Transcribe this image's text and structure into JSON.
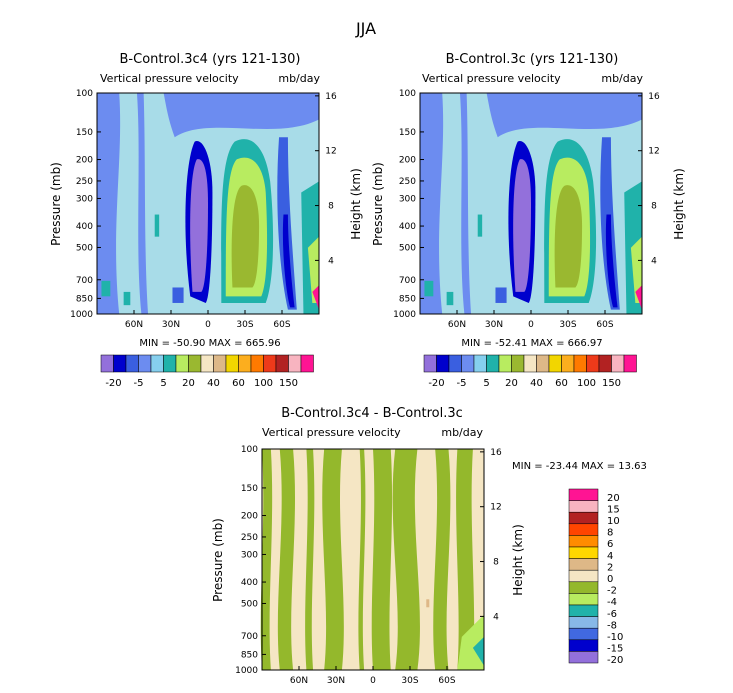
{
  "main_title": "JJA",
  "panels": [
    {
      "title": "B-Control.3c4 (yrs 121-130)",
      "subtitle_left": "Vertical pressure velocity",
      "subtitle_right": "mb/day",
      "ylabel": "Pressure (mb)",
      "ylabel_right": "Height (km)",
      "minmax": "MIN = -50.90   MAX = 665.96"
    },
    {
      "title": "B-Control.3c (yrs 121-130)",
      "subtitle_left": "Vertical pressure velocity",
      "subtitle_right": "mb/day",
      "ylabel": "Pressure (mb)",
      "ylabel_right": "Height (km)",
      "minmax": "MIN = -52.41   MAX = 666.97"
    },
    {
      "title": "B-Control.3c4 - B-Control.3c",
      "subtitle_left": "Vertical pressure velocity",
      "subtitle_right": "mb/day",
      "ylabel": "Pressure (mb)",
      "ylabel_right": "Height (km)",
      "minmax": "MIN = -23.44   MAX =  13.63"
    }
  ],
  "chart_data": [
    {
      "type": "heatmap",
      "title": "B-Control.3c4 (yrs 121-130)",
      "xlabel": "",
      "ylabel": "Pressure (mb)",
      "x_ticks": [
        "60N",
        "30N",
        "0",
        "30S",
        "60S"
      ],
      "y_ticks": [
        "100",
        "150",
        "200",
        "250",
        "300",
        "400",
        "500",
        "700",
        "850",
        "1000"
      ],
      "y_ticks_right": [
        "16",
        "12",
        "8",
        "4"
      ],
      "levels": [
        "-20",
        "-15",
        "-10",
        "-8",
        "-5",
        "-2",
        "0",
        "5",
        "10",
        "20",
        "30",
        "40",
        "50",
        "60",
        "80",
        "100",
        "120",
        "150"
      ],
      "colorbar_labels": [
        "-20",
        "-5",
        "5",
        "20",
        "40",
        "60",
        "100",
        "150"
      ],
      "min": -50.9,
      "max": 665.96
    },
    {
      "type": "heatmap",
      "title": "B-Control.3c (yrs 121-130)",
      "xlabel": "",
      "ylabel": "Pressure (mb)",
      "x_ticks": [
        "60N",
        "30N",
        "0",
        "30S",
        "60S"
      ],
      "y_ticks": [
        "100",
        "150",
        "200",
        "250",
        "300",
        "400",
        "500",
        "700",
        "850",
        "1000"
      ],
      "y_ticks_right": [
        "16",
        "12",
        "8",
        "4"
      ],
      "levels": [
        "-20",
        "-15",
        "-10",
        "-8",
        "-5",
        "-2",
        "0",
        "5",
        "10",
        "20",
        "30",
        "40",
        "50",
        "60",
        "80",
        "100",
        "120",
        "150"
      ],
      "colorbar_labels": [
        "-20",
        "-5",
        "5",
        "20",
        "40",
        "60",
        "100",
        "150"
      ],
      "min": -52.41,
      "max": 666.97
    },
    {
      "type": "heatmap",
      "title": "B-Control.3c4 - B-Control.3c",
      "xlabel": "",
      "ylabel": "Pressure (mb)",
      "x_ticks": [
        "60N",
        "30N",
        "0",
        "30S",
        "60S"
      ],
      "y_ticks": [
        "100",
        "150",
        "200",
        "250",
        "300",
        "400",
        "500",
        "700",
        "850",
        "1000"
      ],
      "y_ticks_right": [
        "16",
        "12",
        "8",
        "4"
      ],
      "levels": [
        "20",
        "15",
        "10",
        "8",
        "6",
        "4",
        "2",
        "0",
        "-2",
        "-4",
        "-6",
        "-8",
        "-10",
        "-15",
        "-20"
      ],
      "colorbar_labels": [
        "20",
        "15",
        "10",
        "8",
        "6",
        "4",
        "2",
        "0",
        "-2",
        "-4",
        "-6",
        "-8",
        "-10",
        "-15",
        "-20"
      ],
      "min": -23.44,
      "max": 13.63
    }
  ],
  "colors": {
    "cb_top": [
      "#9370db",
      "#0000cd",
      "#3a5fe0",
      "#6c8cf0",
      "#86cfee",
      "#20b2aa",
      "#b8ec60",
      "#9ab830",
      "#f5e6c4",
      "#ddb888",
      "#f2d600",
      "#fcae1e",
      "#ff7a00",
      "#ee3a1a",
      "#b22222",
      "#f8b4c0",
      "#ff1493"
    ],
    "cb_diff": [
      "#ff1493",
      "#f8b4c0",
      "#b22222",
      "#ff4500",
      "#ff8c00",
      "#ffd700",
      "#deb887",
      "#f5e6c4",
      "#94b82c",
      "#b8ec60",
      "#20b2aa",
      "#87b8e8",
      "#4169e1",
      "#0000cd",
      "#9370db"
    ]
  }
}
